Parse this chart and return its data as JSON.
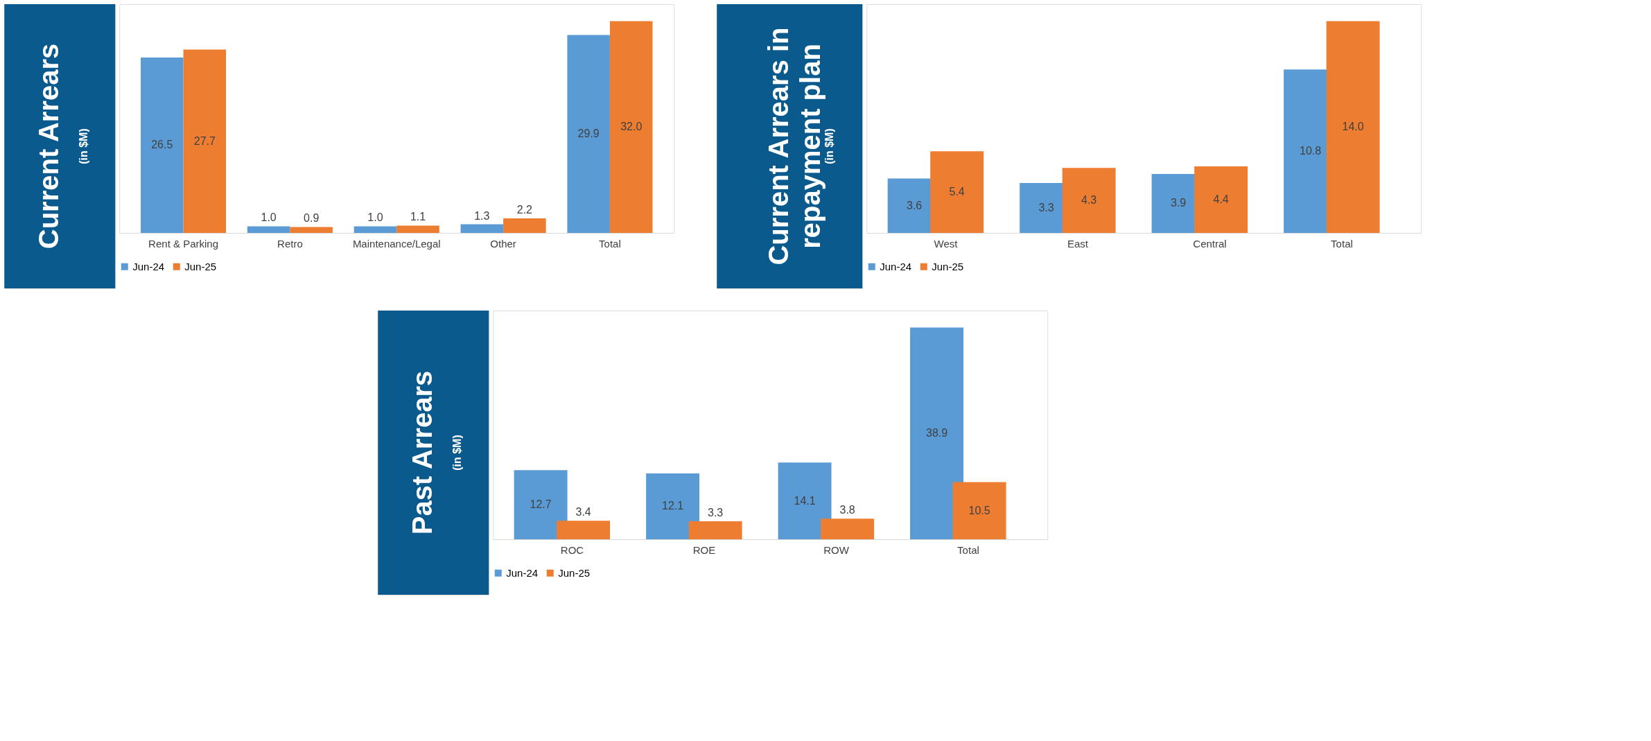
{
  "chart_data": [
    {
      "type": "bar",
      "title": "Current Arrears",
      "subtitle": "(in $M)",
      "categories": [
        "Rent & Parking",
        "Retro",
        "Maintenance/Legal",
        "Other",
        "Total"
      ],
      "series": [
        {
          "name": "Jun-24",
          "color": "#5b9bd5",
          "values": [
            26.5,
            1.0,
            1.0,
            1.3,
            29.9
          ],
          "value_labels": [
            "26.5",
            "1.0",
            "1.0",
            "1.3",
            "29.9"
          ]
        },
        {
          "name": "Jun-25",
          "color": "#ed7d31",
          "values": [
            27.7,
            0.9,
            1.1,
            2.2,
            32.0
          ],
          "value_labels": [
            "27.7",
            "0.9",
            "1.1",
            "2.2",
            "32.0"
          ]
        }
      ],
      "data_labels": true,
      "legend": "bottom",
      "tick_labels": "x",
      "grid": false
    },
    {
      "type": "bar",
      "title": "Current Arrears in repayment plan",
      "subtitle": "(in $M)",
      "categories": [
        "West",
        "East",
        "Central",
        "Total"
      ],
      "series": [
        {
          "name": "Jun-24",
          "color": "#5b9bd5",
          "values": [
            3.6,
            3.3,
            3.9,
            10.8
          ]
        },
        {
          "name": "Jun-25",
          "color": "#ed7d31",
          "values": [
            5.4,
            4.3,
            4.4,
            14.0
          ],
          "value_labels": [
            "5.4",
            "4.3",
            "4.4",
            "14.0"
          ]
        }
      ],
      "data_labels": true,
      "legend": "bottom",
      "tick_labels": "x",
      "grid": false
    },
    {
      "type": "bar",
      "title": "Past Arrears",
      "subtitle": "(in $M)",
      "categories": [
        "ROC",
        "ROE",
        "ROW",
        "Total"
      ],
      "series": [
        {
          "name": "Jun-24",
          "color": "#5b9bd5",
          "values": [
            12.7,
            12.1,
            14.1,
            38.9
          ]
        },
        {
          "name": "Jun-25",
          "color": "#ed7d31",
          "values": [
            3.4,
            3.3,
            3.8,
            10.5
          ]
        }
      ],
      "data_labels": true,
      "legend": "bottom",
      "tick_labels": "x",
      "grid": false
    }
  ]
}
